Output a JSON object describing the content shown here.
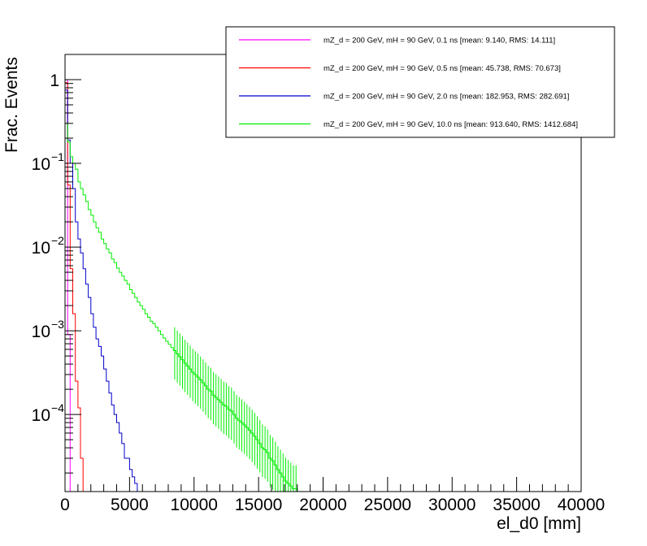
{
  "chart_data": {
    "type": "line",
    "subtype": "histogram-step",
    "xlabel": "el_d0 [mm]",
    "ylabel": "Frac. Events",
    "xlim": [
      0,
      40000
    ],
    "ylim": [
      1.2e-05,
      2.0
    ],
    "y_scale": "log",
    "grid": false,
    "legend_position": "top-right",
    "x_ticks": [
      {
        "v": 0,
        "label": "0"
      },
      {
        "v": 5000,
        "label": "5000"
      },
      {
        "v": 10000,
        "label": "10000"
      },
      {
        "v": 15000,
        "label": "15000"
      },
      {
        "v": 20000,
        "label": "20000"
      },
      {
        "v": 25000,
        "label": "25000"
      },
      {
        "v": 30000,
        "label": "30000"
      },
      {
        "v": 35000,
        "label": "35000"
      },
      {
        "v": 40000,
        "label": "40000"
      }
    ],
    "y_ticks": [
      {
        "v": 1,
        "base": "1",
        "exp": ""
      },
      {
        "v": 0.1,
        "base": "10",
        "exp": "−1"
      },
      {
        "v": 0.01,
        "base": "10",
        "exp": "−2"
      },
      {
        "v": 0.001,
        "base": "10",
        "exp": "−3"
      },
      {
        "v": 0.0001,
        "base": "10",
        "exp": "−4"
      }
    ],
    "bin_width": 200,
    "series": [
      {
        "name": "mZ_d = 200 GeV, mH = 90 GeV, 0.1 ns [mean: 9.140, RMS: 14.111]",
        "color": "#ff00ff",
        "values": [
          0.999,
          0.0009
        ]
      },
      {
        "name": "mZ_d = 200 GeV, mH = 90 GeV, 0.5 ns [mean: 45.738, RMS: 70.673]",
        "color": "#ff0000",
        "values": [
          0.92,
          0.055,
          0.0055,
          0.0016,
          0.00025,
          0.00012,
          3e-05
        ]
      },
      {
        "name": "mZ_d = 200 GeV, mH = 90 GeV, 2.0 ns [mean: 182.953, RMS: 282.691]",
        "color": "#0000cc",
        "values": [
          0.75,
          0.19,
          0.1,
          0.05,
          0.02,
          0.0125,
          0.0085,
          0.0055,
          0.0036,
          0.0025,
          0.0016,
          0.0011,
          0.0008,
          0.00065,
          0.0005,
          0.00035,
          0.00025,
          0.00018,
          0.00013,
          0.0001,
          8e-05,
          6e-05,
          4.5e-05,
          3e-05,
          3e-05,
          2.2e-05,
          1.8e-05,
          1.5e-05
        ]
      },
      {
        "name": "mZ_d = 200 GeV, mH = 90 GeV, 10.0 ns [mean: 913.640, RMS: 1412.684]",
        "color": "#00ee00",
        "values": [
          0.3,
          0.18,
          0.12,
          0.1,
          0.085,
          0.06,
          0.05,
          0.042,
          0.035,
          0.028,
          0.024,
          0.02,
          0.017,
          0.015,
          0.0125,
          0.011,
          0.0095,
          0.0085,
          0.0072,
          0.0065,
          0.0056,
          0.005,
          0.0045,
          0.004,
          0.0036,
          0.0031,
          0.0028,
          0.0025,
          0.0022,
          0.002,
          0.0018,
          0.0016,
          0.00145,
          0.0013,
          0.00122,
          0.0011,
          0.001,
          0.0009,
          0.00082,
          0.00075,
          0.00069,
          0.00063,
          0.00058,
          0.00053,
          0.00049,
          0.00045,
          0.00041,
          0.00038,
          0.00035,
          0.00032,
          0.0003,
          0.00028,
          0.00026,
          0.00024,
          0.00022,
          0.0002,
          0.00019,
          0.00017,
          0.00016,
          0.00015,
          0.00014,
          0.00013,
          0.000125,
          0.000115,
          0.00011,
          0.0001,
          9e-05,
          8.5e-05,
          8e-05,
          7.5e-05,
          7e-05,
          6.5e-05,
          6e-05,
          5.5e-05,
          5e-05,
          4.5e-05,
          4e-05,
          3.8e-05,
          3.5e-05,
          3e-05,
          2.8e-05,
          2.5e-05,
          2.2e-05,
          2e-05,
          1.8e-05,
          1.6e-05,
          1.5e-05,
          1.4e-05,
          1.3e-05,
          1.3e-05
        ]
      }
    ]
  }
}
